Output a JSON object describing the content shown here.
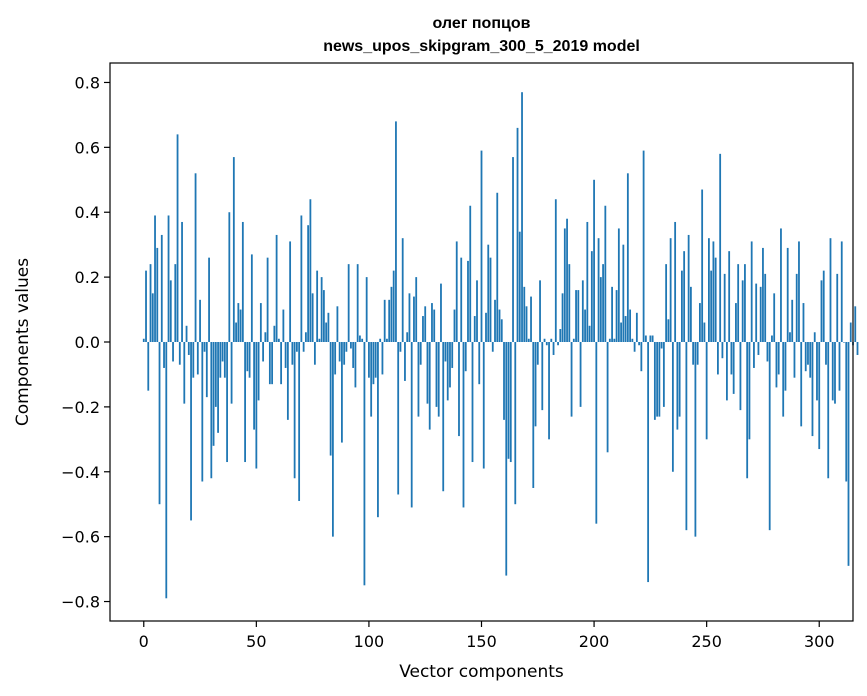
{
  "chart_data": {
    "type": "bar",
    "title": "олег попцов",
    "subtitle": "news_upos_skipgram_300_5_2019 model",
    "xlabel": "Vector components",
    "ylabel": "Components values",
    "xlim": [
      -15,
      315
    ],
    "ylim": [
      -0.86,
      0.86
    ],
    "xticks": [
      0,
      50,
      100,
      150,
      200,
      250,
      300
    ],
    "yticks": [
      -0.8,
      -0.6,
      -0.4,
      -0.2,
      0.0,
      0.2,
      0.4,
      0.6,
      0.8
    ],
    "ytick_labels": [
      "−0.8",
      "−0.6",
      "−0.4",
      "−0.2",
      "0.0",
      "0.2",
      "0.4",
      "0.6",
      "0.8"
    ],
    "bar_color": "#1f77b4",
    "grid": false,
    "values": [
      0.01,
      0.22,
      -0.15,
      0.24,
      0.15,
      0.39,
      0.29,
      -0.5,
      0.33,
      -0.08,
      -0.79,
      0.39,
      0.19,
      -0.06,
      0.24,
      0.64,
      -0.07,
      0.37,
      -0.19,
      0.05,
      -0.04,
      -0.55,
      -0.11,
      0.52,
      -0.1,
      0.13,
      -0.43,
      -0.03,
      -0.17,
      0.26,
      -0.42,
      -0.32,
      -0.2,
      -0.28,
      -0.11,
      -0.06,
      -0.11,
      -0.37,
      0.4,
      -0.19,
      0.57,
      0.06,
      0.12,
      0.1,
      0.37,
      -0.37,
      -0.09,
      -0.11,
      0.27,
      -0.27,
      -0.39,
      -0.18,
      0.12,
      -0.06,
      0.03,
      0.26,
      -0.13,
      -0.13,
      0.05,
      0.33,
      0.01,
      -0.13,
      0.1,
      -0.08,
      -0.24,
      0.31,
      -0.07,
      -0.42,
      -0.03,
      -0.49,
      0.39,
      -0.03,
      0.03,
      0.36,
      0.44,
      0.15,
      -0.07,
      0.22,
      0.01,
      0.2,
      0.16,
      0.06,
      0.09,
      -0.35,
      -0.6,
      -0.1,
      0.11,
      -0.06,
      -0.31,
      -0.07,
      -0.03,
      0.24,
      -0.02,
      -0.08,
      -0.14,
      0.24,
      0.02,
      0.01,
      -0.75,
      0.2,
      -0.11,
      -0.23,
      -0.13,
      -0.11,
      -0.54,
      0.01,
      -0.1,
      0.13,
      0.01,
      0.13,
      0.17,
      0.22,
      0.68,
      -0.47,
      -0.03,
      0.32,
      -0.12,
      0.03,
      0.15,
      -0.51,
      0.14,
      0.2,
      -0.23,
      -0.07,
      0.08,
      0.11,
      -0.19,
      -0.27,
      0.12,
      0.1,
      -0.2,
      -0.23,
      0.18,
      -0.46,
      -0.06,
      -0.18,
      -0.14,
      -0.08,
      0.1,
      0.31,
      -0.29,
      0.26,
      -0.51,
      -0.09,
      0.25,
      0.42,
      -0.37,
      0.08,
      0.19,
      -0.13,
      0.59,
      -0.39,
      0.09,
      0.3,
      0.26,
      -0.03,
      0.13,
      0.46,
      0.1,
      0.07,
      -0.24,
      -0.72,
      -0.36,
      -0.37,
      0.57,
      -0.5,
      0.66,
      0.34,
      0.77,
      0.17,
      0.11,
      0.01,
      0.14,
      -0.45,
      -0.26,
      -0.07,
      0.19,
      -0.21,
      0.01,
      -0.01,
      -0.3,
      0.01,
      -0.04,
      0.44,
      -0.01,
      0.04,
      0.15,
      0.35,
      0.38,
      0.24,
      -0.23,
      0.01,
      0.16,
      0.16,
      -0.2,
      0.19,
      0.1,
      0.37,
      0.05,
      0.28,
      0.5,
      -0.56,
      0.32,
      0.2,
      0.24,
      0.42,
      -0.34,
      0.01,
      0.17,
      0.01,
      0.16,
      0.35,
      0.06,
      0.3,
      0.08,
      0.52,
      0.1,
      0.01,
      -0.03,
      0.09,
      -0.01,
      -0.09,
      0.59,
      0.02,
      -0.74,
      0.02,
      0.02,
      -0.24,
      -0.23,
      -0.23,
      -0.02,
      -0.2,
      0.24,
      0.07,
      0.32,
      -0.4,
      0.37,
      -0.27,
      -0.23,
      0.22,
      0.28,
      -0.58,
      0.33,
      0.17,
      -0.07,
      -0.6,
      -0.07,
      0.12,
      0.47,
      0.06,
      -0.3,
      0.32,
      0.22,
      0.31,
      0.26,
      -0.1,
      0.58,
      -0.05,
      0.21,
      -0.18,
      0.28,
      -0.1,
      -0.16,
      0.12,
      0.24,
      -0.21,
      0.19,
      0.24,
      -0.42,
      -0.3,
      0.31,
      -0.08,
      0.18,
      -0.04,
      0.17,
      0.29,
      0.21,
      -0.06,
      -0.58,
      0.02,
      0.15,
      -0.14,
      -0.1,
      0.35,
      -0.23,
      -0.15,
      0.29,
      0.03,
      0.13,
      -0.11,
      0.21,
      0.31,
      -0.26,
      0.12,
      -0.09,
      -0.07,
      -0.11,
      -0.29,
      0.03,
      -0.18,
      -0.33,
      0.19,
      0.22,
      -0.07,
      -0.42,
      0.32,
      -0.18,
      -0.19,
      0.21,
      -0.15,
      0.31,
      0.0,
      -0.43,
      -0.69,
      0.06,
      -0.01,
      0.11,
      -0.04
    ]
  }
}
